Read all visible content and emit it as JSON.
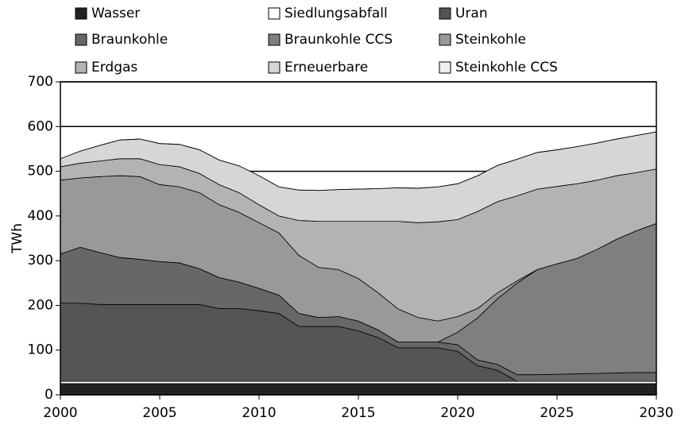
{
  "chart_data": {
    "type": "stacked_area",
    "y_label": "TWh",
    "x": [
      2000,
      2001,
      2002,
      2003,
      2004,
      2005,
      2006,
      2007,
      2008,
      2009,
      2010,
      2011,
      2012,
      2013,
      2014,
      2015,
      2016,
      2017,
      2018,
      2019,
      2020,
      2021,
      2022,
      2023,
      2024,
      2025,
      2026,
      2027,
      2028,
      2029,
      2030
    ],
    "xlim": [
      2000,
      2030
    ],
    "xticks": [
      2000,
      2005,
      2010,
      2015,
      2020,
      2025,
      2030
    ],
    "ylim": [
      0,
      700
    ],
    "yticks": [
      0,
      100,
      200,
      300,
      400,
      500,
      600,
      700
    ],
    "grid": true,
    "series": [
      {
        "name": "Wasser",
        "color": "#222222",
        "values": [
          25,
          25,
          25,
          25,
          25,
          25,
          25,
          25,
          25,
          25,
          25,
          25,
          25,
          25,
          25,
          25,
          25,
          25,
          25,
          25,
          25,
          25,
          25,
          25,
          25,
          25,
          25,
          25,
          25,
          25,
          25
        ]
      },
      {
        "name": "Siedlungsabfall",
        "color": "#ffffff",
        "values": [
          5,
          5,
          5,
          5,
          5,
          5,
          5,
          5,
          5,
          5,
          5,
          5,
          5,
          5,
          5,
          5,
          5,
          5,
          5,
          5,
          5,
          5,
          5,
          5,
          5,
          5,
          5,
          5,
          5,
          5,
          5
        ]
      },
      {
        "name": "Uran",
        "color": "#555555",
        "values": [
          175,
          175,
          172,
          172,
          172,
          172,
          172,
          172,
          163,
          163,
          158,
          152,
          123,
          123,
          123,
          113,
          98,
          75,
          75,
          75,
          67,
          35,
          25,
          0,
          0,
          0,
          0,
          0,
          0,
          0,
          0
        ]
      },
      {
        "name": "Braunkohle",
        "color": "#676767",
        "values": [
          110,
          125,
          116,
          105,
          101,
          96,
          93,
          80,
          69,
          59,
          50,
          41,
          29,
          20,
          22,
          22,
          17,
          13,
          13,
          13,
          15,
          13,
          13,
          15,
          15,
          16,
          17,
          18,
          19,
          20,
          20
        ]
      },
      {
        "name": "Braunkohle CCS",
        "color": "#7f7f7f",
        "values": [
          0,
          0,
          0,
          0,
          0,
          0,
          0,
          0,
          0,
          0,
          0,
          0,
          0,
          0,
          0,
          0,
          0,
          0,
          0,
          0,
          28,
          94,
          147,
          205,
          235,
          247,
          258,
          277,
          299,
          317,
          333
        ]
      },
      {
        "name": "Steinkohle",
        "color": "#999999",
        "values": [
          165,
          155,
          170,
          183,
          185,
          172,
          170,
          170,
          163,
          156,
          147,
          139,
          130,
          112,
          105,
          95,
          83,
          74,
          55,
          47,
          35,
          21,
          13,
          5,
          0,
          0,
          0,
          0,
          0,
          0,
          0
        ]
      },
      {
        "name": "Erdgas",
        "color": "#b3b3b3",
        "values": [
          30,
          33,
          35,
          38,
          40,
          45,
          45,
          43,
          45,
          44,
          40,
          38,
          78,
          103,
          108,
          128,
          160,
          196,
          212,
          222,
          217,
          217,
          204,
          190,
          180,
          173,
          167,
          155,
          142,
          130,
          122
        ]
      },
      {
        "name": "Erneuerbare",
        "color": "#d6d6d6",
        "values": [
          18,
          27,
          35,
          42,
          44,
          47,
          50,
          53,
          55,
          60,
          65,
          65,
          68,
          69,
          71,
          72,
          73,
          75,
          77,
          78,
          80,
          80,
          81,
          82,
          82,
          82,
          83,
          83,
          82,
          83,
          83
        ]
      },
      {
        "name": "Steinkohle CCS",
        "color": "#efefef",
        "values": [
          0,
          0,
          0,
          0,
          0,
          0,
          0,
          0,
          0,
          0,
          0,
          0,
          0,
          0,
          0,
          0,
          0,
          0,
          0,
          0,
          0,
          0,
          0,
          0,
          0,
          0,
          0,
          0,
          0,
          0,
          0
        ]
      }
    ]
  }
}
